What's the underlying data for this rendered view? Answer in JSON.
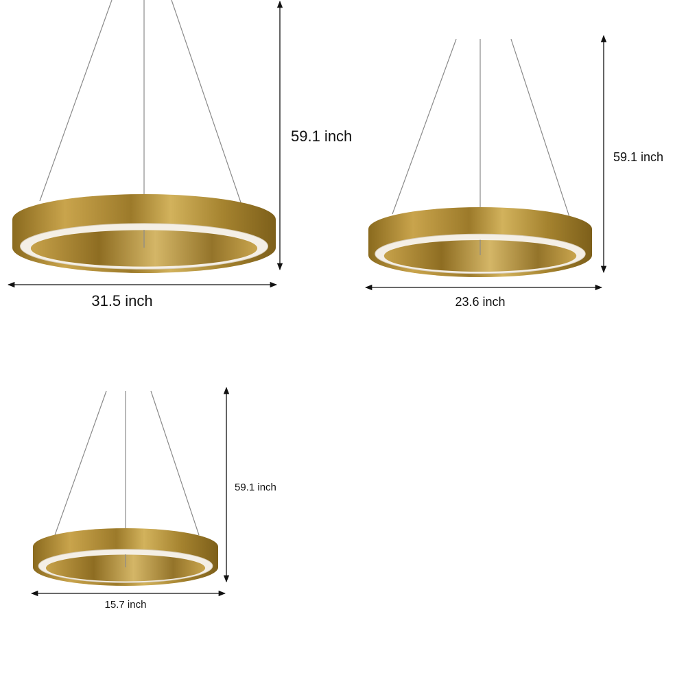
{
  "lamps": [
    {
      "height_label": "59.1 inch",
      "width_label": "31.5 inch"
    },
    {
      "height_label": "59.1 inch",
      "width_label": "23.6 inch"
    },
    {
      "height_label": "59.1 inch",
      "width_label": "15.7 inch"
    }
  ]
}
